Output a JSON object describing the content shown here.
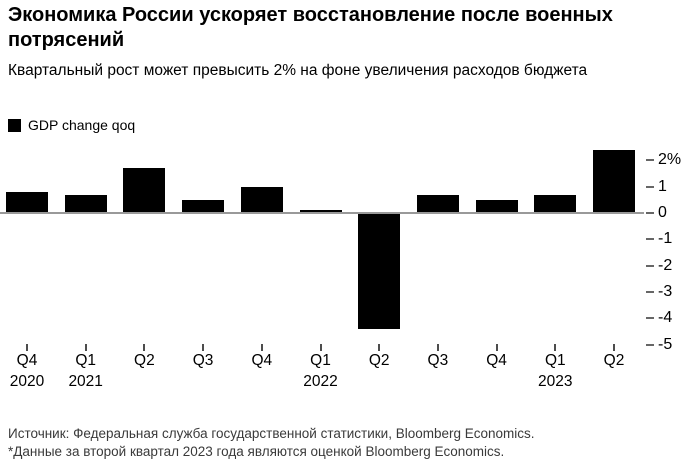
{
  "header": {
    "title": "Экономика России ускоряет восстановление после военных потрясений",
    "subtitle": "Квартальный рост может превысить 2% на фоне увеличения расходов бюджета"
  },
  "legend": {
    "label": "GDP change qoq",
    "swatch_color": "#000000"
  },
  "chart_data": {
    "type": "bar",
    "title": "Экономика России ускоряет восстановление после военных потрясений",
    "subtitle": "Квартальный рост может превысить 2% на фоне увеличения расходов бюджета",
    "series_name": "GDP change qoq",
    "categories": [
      "Q4 2020",
      "Q1 2021",
      "Q2 2021",
      "Q3 2021",
      "Q4 2021",
      "Q1 2022",
      "Q2 2022",
      "Q3 2022",
      "Q4 2022",
      "Q1 2023",
      "Q2 2023"
    ],
    "values": [
      0.8,
      0.7,
      1.7,
      0.5,
      1.0,
      0.1,
      -4.4,
      0.7,
      0.5,
      0.7,
      2.4
    ],
    "unit": "%",
    "x_tick_quarters": [
      "Q4",
      "Q1",
      "Q2",
      "Q3",
      "Q4",
      "Q1",
      "Q2",
      "Q3",
      "Q4",
      "Q1",
      "Q2"
    ],
    "x_tick_years": [
      "2020",
      "2021",
      "",
      "",
      "",
      "2022",
      "",
      "",
      "",
      "2023",
      ""
    ],
    "yticks": [
      {
        "label": "2%",
        "value": 2
      },
      {
        "label": "1",
        "value": 1
      },
      {
        "label": "0",
        "value": 0
      },
      {
        "label": "-1",
        "value": -1
      },
      {
        "label": "-2",
        "value": -2
      },
      {
        "label": "-3",
        "value": -3
      },
      {
        "label": "-4",
        "value": -4
      },
      {
        "label": "-5",
        "value": -5
      }
    ],
    "ylim": [
      -5,
      2.5
    ],
    "bar_color": "#000000",
    "axis_line_color": "#999999",
    "tick_color": "#4d4d4d",
    "legend_position": "top-left",
    "grid": false
  },
  "footer": {
    "source": "Источник: Федеральная служба государственной статистики, Bloomberg Economics.",
    "note": "*Данные за второй квартал 2023 года являются оценкой Bloomberg Economics."
  }
}
